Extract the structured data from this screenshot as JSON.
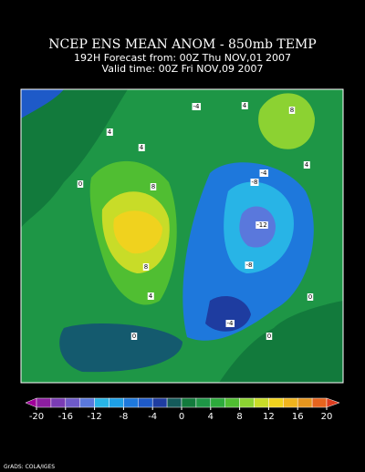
{
  "header": {
    "title": "NCEP ENS MEAN ANOM - 850mb TEMP",
    "forecast": "192H Forecast from: 00Z Thu NOV,01 2007",
    "valid": "Valid time: 00Z Fri NOV,09 2007"
  },
  "map": {
    "labels": [
      "-4",
      "4",
      "4",
      "0",
      "8",
      "8",
      "4",
      "-4",
      "-8",
      "-12",
      "-8",
      "-4",
      "0",
      "0",
      "8",
      "4",
      "4",
      "0"
    ]
  },
  "colorbar": {
    "ticks": [
      -20,
      -16,
      -12,
      -8,
      -4,
      0,
      4,
      8,
      12,
      16,
      20
    ],
    "colors": [
      "#a0009a",
      "#8c1ea0",
      "#7a3cb4",
      "#6e5ac8",
      "#5a78dc",
      "#28b4e6",
      "#1ea0e6",
      "#1e78dc",
      "#1e5ac8",
      "#1e3ca0",
      "#145a5a",
      "#127a3c",
      "#1e9646",
      "#2daa3c",
      "#50be32",
      "#8cd232",
      "#c8dc28",
      "#f0d21e",
      "#f0b41e",
      "#e6961e",
      "#e6641e",
      "#dc3c1e"
    ]
  },
  "footer": "GrADS: COLA/IGES"
}
